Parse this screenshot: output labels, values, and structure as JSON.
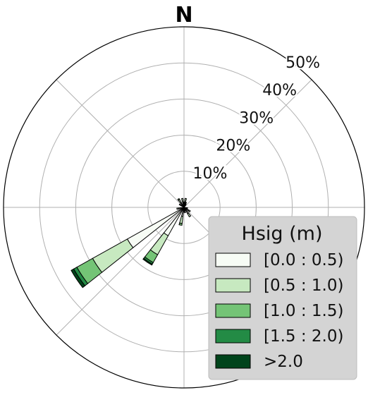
{
  "chart_data": {
    "type": "windrose",
    "direction_label": "N",
    "radial_ticks": [
      "10%",
      "20%",
      "30%",
      "40%",
      "50%"
    ],
    "rmax": 50,
    "grid": true,
    "legend": {
      "title": "Hsig (m)",
      "placement": "bottom-right",
      "bins": [
        {
          "label": "[0.0 : 0.5)",
          "color": "#f7fcf5"
        },
        {
          "label": "[0.5 : 1.0)",
          "color": "#c7e9c0"
        },
        {
          "label": "[1.0 : 1.5)",
          "color": "#74c476"
        },
        {
          "label": "[1.5 : 2.0)",
          "color": "#238b45"
        },
        {
          "label": ">2.0",
          "color": "#00441b"
        }
      ]
    },
    "directions": [
      {
        "deg": 0,
        "values": [
          1.0,
          0.5,
          0.0,
          0.0,
          0.0
        ]
      },
      {
        "deg": 11.25,
        "values": [
          1.5,
          1.0,
          0.0,
          0.0,
          0.0
        ]
      },
      {
        "deg": 22.5,
        "values": [
          1.0,
          0.5,
          0.0,
          0.0,
          0.0
        ]
      },
      {
        "deg": 33.75,
        "values": [
          0.7,
          0.3,
          0.0,
          0.0,
          0.0
        ]
      },
      {
        "deg": 101.25,
        "values": [
          0.8,
          0.2,
          0.0,
          0.0,
          0.0
        ]
      },
      {
        "deg": 123.75,
        "values": [
          1.5,
          0.5,
          0.0,
          0.0,
          0.0
        ]
      },
      {
        "deg": 146.25,
        "values": [
          2.0,
          1.0,
          0.0,
          0.0,
          0.0
        ]
      },
      {
        "deg": 168.75,
        "values": [
          1.0,
          0.5,
          0.0,
          0.0,
          0.0
        ]
      },
      {
        "deg": 191.25,
        "values": [
          2.5,
          2.0,
          0.5,
          0.0,
          0.0
        ]
      },
      {
        "deg": 213.75,
        "values": [
          9.0,
          6.0,
          2.5,
          0.5,
          0.3
        ]
      },
      {
        "deg": 236.25,
        "values": [
          18.0,
          11.0,
          5.0,
          1.0,
          0.8
        ]
      },
      {
        "deg": 258.75,
        "values": [
          1.5,
          0.5,
          0.0,
          0.0,
          0.0
        ]
      },
      {
        "deg": 303.75,
        "values": [
          1.0,
          0.5,
          0.0,
          0.0,
          0.0
        ]
      },
      {
        "deg": 326.25,
        "values": [
          1.5,
          1.0,
          0.3,
          0.0,
          0.0
        ]
      },
      {
        "deg": 348.75,
        "values": [
          1.5,
          1.0,
          0.0,
          0.0,
          0.0
        ]
      }
    ]
  }
}
